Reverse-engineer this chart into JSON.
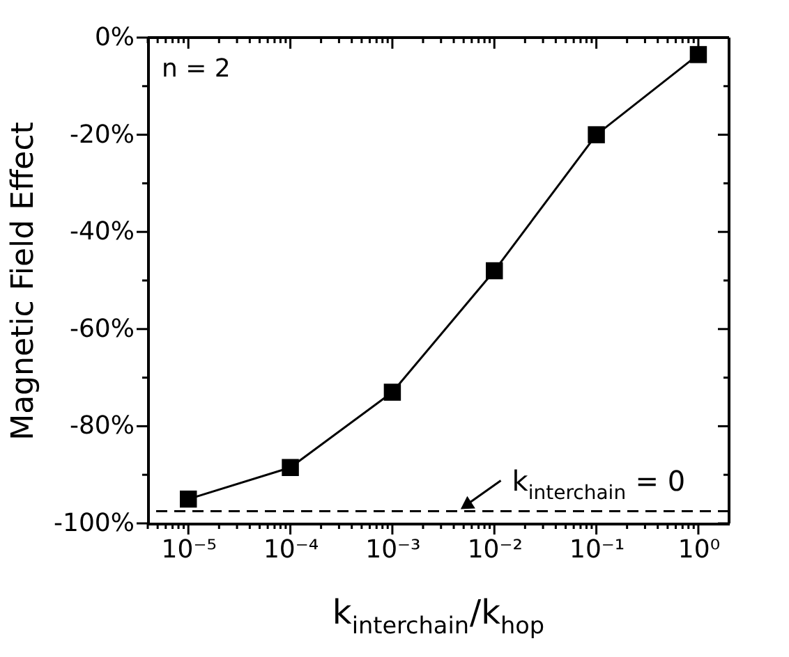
{
  "chart_data": {
    "type": "line",
    "xlabel": "k$_{interchain}$/k$_{hop}$",
    "ylabel": "Magnetic Field Effect",
    "x": [
      1e-05,
      0.0001,
      0.001,
      0.01,
      0.1,
      1
    ],
    "series": [
      {
        "color": "#000000",
        "values": [
          -95,
          -88.5,
          -73,
          -48,
          -20,
          -3.5
        ]
      }
    ],
    "marker": "square",
    "line_style": "solid",
    "log": "x",
    "grid": false,
    "xlim": [
      4e-06,
      2
    ],
    "ylim": [
      -100,
      0
    ],
    "xticks": [
      {
        "value": 4e-06,
        "label": null
      },
      {
        "value": 5e-06,
        "label": null
      },
      {
        "value": 6e-06,
        "label": null
      },
      {
        "value": 7e-06,
        "label": null
      },
      {
        "value": 8e-06,
        "label": null
      },
      {
        "value": 9e-06,
        "label": null
      },
      {
        "value": 1e-05,
        "label": "10⁻⁵"
      },
      {
        "value": 2e-05,
        "label": null
      },
      {
        "value": 3e-05,
        "label": null
      },
      {
        "value": 4e-05,
        "label": null
      },
      {
        "value": 5e-05,
        "label": null
      },
      {
        "value": 6e-05,
        "label": null
      },
      {
        "value": 7e-05,
        "label": null
      },
      {
        "value": 8e-05,
        "label": null
      },
      {
        "value": 9e-05,
        "label": null
      },
      {
        "value": 0.0001,
        "label": "10⁻⁴"
      },
      {
        "value": 0.0002,
        "label": null
      },
      {
        "value": 0.0003,
        "label": null
      },
      {
        "value": 0.0004,
        "label": null
      },
      {
        "value": 0.0005,
        "label": null
      },
      {
        "value": 0.0006,
        "label": null
      },
      {
        "value": 0.0007,
        "label": null
      },
      {
        "value": 0.0008,
        "label": null
      },
      {
        "value": 0.0009,
        "label": null
      },
      {
        "value": 0.001,
        "label": "10⁻³"
      },
      {
        "value": 0.002,
        "label": null
      },
      {
        "value": 0.003,
        "label": null
      },
      {
        "value": 0.004,
        "label": null
      },
      {
        "value": 0.005,
        "label": null
      },
      {
        "value": 0.006,
        "label": null
      },
      {
        "value": 0.007,
        "label": null
      },
      {
        "value": 0.008,
        "label": null
      },
      {
        "value": 0.009,
        "label": null
      },
      {
        "value": 0.01,
        "label": "10⁻²"
      },
      {
        "value": 0.02,
        "label": null
      },
      {
        "value": 0.03,
        "label": null
      },
      {
        "value": 0.04,
        "label": null
      },
      {
        "value": 0.05,
        "label": null
      },
      {
        "value": 0.06,
        "label": null
      },
      {
        "value": 0.07,
        "label": null
      },
      {
        "value": 0.08,
        "label": null
      },
      {
        "value": 0.09,
        "label": null
      },
      {
        "value": 0.1,
        "label": "10⁻¹"
      },
      {
        "value": 0.2,
        "label": null
      },
      {
        "value": 0.3,
        "label": null
      },
      {
        "value": 0.4,
        "label": null
      },
      {
        "value": 0.5,
        "label": null
      },
      {
        "value": 0.6,
        "label": null
      },
      {
        "value": 0.7,
        "label": null
      },
      {
        "value": 0.8,
        "label": null
      },
      {
        "value": 0.9,
        "label": null
      },
      {
        "value": 1,
        "label": "10⁰"
      }
    ],
    "yticks": [
      {
        "value": -100,
        "label": "-100%"
      },
      {
        "value": -90,
        "label": null
      },
      {
        "value": -80,
        "label": "-80%"
      },
      {
        "value": -70,
        "label": null
      },
      {
        "value": -60,
        "label": "-60%"
      },
      {
        "value": -50,
        "label": null
      },
      {
        "value": -40,
        "label": "-40%"
      },
      {
        "value": -30,
        "label": null
      },
      {
        "value": -20,
        "label": "-20%"
      },
      {
        "value": -10,
        "label": null
      },
      {
        "value": 0,
        "label": "0%"
      }
    ],
    "ref_lines": [
      {
        "axis": "y",
        "value": -97.5,
        "color": "#000000",
        "line_style": "dashed"
      }
    ],
    "annotations": [
      "n = 2",
      {
        "text": "k$_{interchain}$ = 0",
        "x": 0.0045,
        "y": -97.5
      }
    ]
  }
}
